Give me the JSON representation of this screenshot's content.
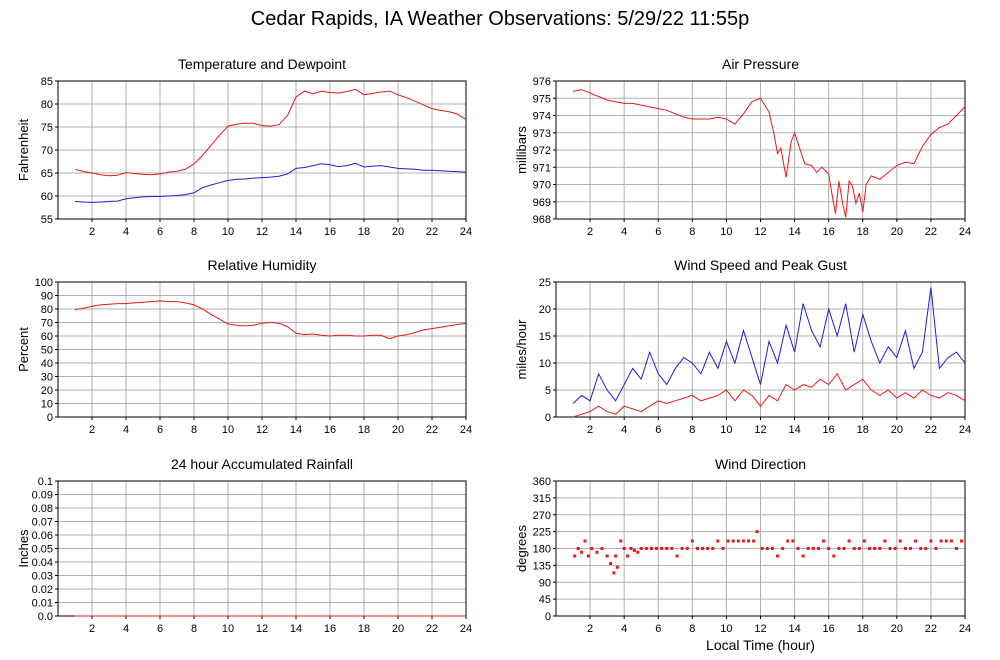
{
  "page_title": "Cedar Rapids, IA Weather Observations: 5/29/22 11:55p",
  "colors": {
    "red": "#e41a1c",
    "blue": "#1f1fd0",
    "grid": "#b0b0b0",
    "frame": "#000000"
  },
  "chart_data": [
    {
      "id": "temperature",
      "type": "line",
      "title": "Temperature and Dewpoint",
      "ylabel": "Fahrenheit",
      "xlabel": "",
      "xlim": [
        0,
        24
      ],
      "ylim": [
        55,
        85
      ],
      "xticks": [
        2,
        4,
        6,
        8,
        10,
        12,
        14,
        16,
        18,
        20,
        22,
        24
      ],
      "yticks": [
        55,
        60,
        65,
        70,
        75,
        80,
        85
      ],
      "grid": true,
      "series": [
        {
          "color": "red",
          "x": [
            1,
            1.5,
            2,
            2.5,
            3,
            3.5,
            4,
            4.5,
            5,
            5.5,
            6,
            6.5,
            7,
            7.5,
            8,
            8.5,
            9,
            9.5,
            10,
            10.5,
            11,
            11.5,
            12,
            12.5,
            13,
            13.5,
            14,
            14.5,
            15,
            15.5,
            16,
            16.5,
            17,
            17.5,
            18,
            18.5,
            19,
            19.5,
            20,
            20.5,
            21,
            21.5,
            22,
            22.5,
            23,
            23.5,
            24
          ],
          "y": [
            65.8,
            65.3,
            65.0,
            64.6,
            64.4,
            64.5,
            65.1,
            64.9,
            64.7,
            64.6,
            64.8,
            65.2,
            65.4,
            65.8,
            67.0,
            68.8,
            71.0,
            73.2,
            75.2,
            75.6,
            75.8,
            75.8,
            75.3,
            75.2,
            75.5,
            77.5,
            81.5,
            82.8,
            82.2,
            82.8,
            82.5,
            82.4,
            82.7,
            83.2,
            82.0,
            82.3,
            82.6,
            82.8,
            82.0,
            81.4,
            80.6,
            79.8,
            79.0,
            78.6,
            78.3,
            77.8,
            76.6
          ]
        },
        {
          "color": "blue",
          "x": [
            1,
            1.5,
            2,
            2.5,
            3,
            3.5,
            4,
            4.5,
            5,
            5.5,
            6,
            6.5,
            7,
            7.5,
            8,
            8.5,
            9,
            9.5,
            10,
            10.5,
            11,
            11.5,
            12,
            12.5,
            13,
            13.5,
            14,
            14.5,
            15,
            15.5,
            16,
            16.5,
            17,
            17.5,
            18,
            18.5,
            19,
            19.5,
            20,
            20.5,
            21,
            21.5,
            22,
            22.5,
            23,
            23.5,
            24
          ],
          "y": [
            58.8,
            58.7,
            58.6,
            58.7,
            58.8,
            58.9,
            59.4,
            59.6,
            59.8,
            59.9,
            59.9,
            60.0,
            60.1,
            60.3,
            60.7,
            61.8,
            62.4,
            62.9,
            63.4,
            63.6,
            63.7,
            63.9,
            64.0,
            64.1,
            64.3,
            64.8,
            66.0,
            66.2,
            66.6,
            67.0,
            66.8,
            66.4,
            66.6,
            67.1,
            66.3,
            66.5,
            66.6,
            66.3,
            66.0,
            65.9,
            65.8,
            65.6,
            65.6,
            65.5,
            65.4,
            65.3,
            65.2
          ]
        }
      ]
    },
    {
      "id": "pressure",
      "type": "line",
      "title": "Air Pressure",
      "ylabel": "millibars",
      "xlabel": "",
      "xlim": [
        0,
        24
      ],
      "ylim": [
        968,
        976
      ],
      "xticks": [
        2,
        4,
        6,
        8,
        10,
        12,
        14,
        16,
        18,
        20,
        22,
        24
      ],
      "yticks": [
        968,
        969,
        970,
        971,
        972,
        973,
        974,
        975,
        976
      ],
      "grid": true,
      "series": [
        {
          "color": "red",
          "x": [
            1,
            1.5,
            2,
            2.5,
            3,
            3.5,
            4,
            4.5,
            5,
            5.5,
            6,
            6.5,
            7,
            7.5,
            8,
            8.5,
            9,
            9.5,
            10,
            10.5,
            11,
            11.5,
            12,
            12.5,
            12.8,
            13,
            13.2,
            13.5,
            13.8,
            14,
            14.3,
            14.6,
            15,
            15.3,
            15.6,
            16,
            16.2,
            16.4,
            16.6,
            16.8,
            17,
            17.2,
            17.4,
            17.6,
            17.8,
            18,
            18.2,
            18.5,
            19,
            19.5,
            20,
            20.5,
            21,
            21.5,
            22,
            22.5,
            23,
            23.5,
            24
          ],
          "y": [
            975.4,
            975.5,
            975.3,
            975.1,
            974.9,
            974.8,
            974.7,
            974.7,
            974.6,
            974.5,
            974.4,
            974.3,
            974.1,
            973.9,
            973.8,
            973.8,
            973.8,
            973.9,
            973.8,
            973.5,
            974.1,
            974.8,
            975.0,
            974.2,
            972.9,
            971.8,
            972.1,
            970.4,
            972.5,
            973.0,
            972.1,
            971.2,
            971.1,
            970.7,
            971.0,
            970.6,
            969.4,
            968.3,
            970.2,
            969.0,
            968.1,
            970.2,
            969.9,
            968.9,
            969.5,
            968.4,
            970.0,
            970.5,
            970.3,
            970.7,
            971.1,
            971.3,
            971.2,
            972.2,
            972.9,
            973.3,
            973.5,
            974.0,
            974.5
          ]
        }
      ]
    },
    {
      "id": "humidity",
      "type": "line",
      "title": "Relative Humidity",
      "ylabel": "Percent",
      "xlabel": "",
      "xlim": [
        0,
        24
      ],
      "ylim": [
        0,
        100
      ],
      "xticks": [
        2,
        4,
        6,
        8,
        10,
        12,
        14,
        16,
        18,
        20,
        22,
        24
      ],
      "yticks": [
        0,
        10,
        20,
        30,
        40,
        50,
        60,
        70,
        80,
        90,
        100
      ],
      "grid": true,
      "series": [
        {
          "color": "red",
          "x": [
            1,
            1.5,
            2,
            2.5,
            3,
            3.5,
            4,
            4.5,
            5,
            5.5,
            6,
            6.5,
            7,
            7.5,
            8,
            8.5,
            9,
            9.5,
            10,
            10.5,
            11,
            11.5,
            12,
            12.5,
            13,
            13.5,
            14,
            14.5,
            15,
            15.5,
            16,
            16.5,
            17,
            17.5,
            18,
            18.5,
            19,
            19.5,
            20,
            20.5,
            21,
            21.5,
            22,
            22.5,
            23,
            23.5,
            24
          ],
          "y": [
            79.5,
            80.5,
            82.0,
            83.0,
            83.5,
            84.0,
            84.0,
            84.5,
            85.0,
            85.5,
            86.0,
            85.5,
            85.5,
            84.5,
            83.0,
            80.0,
            76.0,
            72.5,
            69.0,
            68.0,
            67.5,
            68.0,
            69.5,
            70.0,
            69.5,
            67.0,
            62.0,
            61.0,
            61.5,
            60.5,
            60.0,
            60.5,
            60.5,
            60.0,
            60.0,
            60.5,
            60.5,
            58.0,
            60.0,
            61.0,
            62.5,
            64.5,
            65.5,
            66.5,
            67.5,
            68.5,
            69.5
          ]
        }
      ]
    },
    {
      "id": "wind",
      "type": "line",
      "title": "Wind Speed and Peak Gust",
      "ylabel": "miles/hour",
      "xlabel": "",
      "xlim": [
        0,
        24
      ],
      "ylim": [
        0,
        25
      ],
      "xticks": [
        2,
        4,
        6,
        8,
        10,
        12,
        14,
        16,
        18,
        20,
        22,
        24
      ],
      "yticks": [
        0,
        5,
        10,
        15,
        20,
        25
      ],
      "grid": true,
      "series": [
        {
          "color": "blue",
          "x": [
            1,
            1.5,
            2,
            2.5,
            3,
            3.5,
            4,
            4.5,
            5,
            5.5,
            6,
            6.5,
            7,
            7.5,
            8,
            8.5,
            9,
            9.5,
            10,
            10.5,
            11,
            11.5,
            12,
            12.5,
            13,
            13.5,
            14,
            14.5,
            15,
            15.5,
            16,
            16.5,
            17,
            17.5,
            18,
            18.5,
            19,
            19.5,
            20,
            20.5,
            21,
            21.5,
            22,
            22.5,
            23,
            23.5,
            24
          ],
          "y": [
            2.5,
            4,
            3,
            8,
            5,
            3,
            6,
            9,
            7,
            12,
            8,
            6,
            9,
            11,
            10,
            8,
            12,
            9,
            14,
            10,
            16,
            11,
            6,
            14,
            10,
            17,
            12,
            21,
            16,
            13,
            20,
            15,
            21,
            12,
            19,
            14,
            10,
            13,
            11,
            16,
            9,
            12,
            24,
            9,
            11,
            12,
            10
          ]
        },
        {
          "color": "red",
          "x": [
            1,
            1.5,
            2,
            2.5,
            3,
            3.5,
            4,
            4.5,
            5,
            5.5,
            6,
            6.5,
            7,
            7.5,
            8,
            8.5,
            9,
            9.5,
            10,
            10.5,
            11,
            11.5,
            12,
            12.5,
            13,
            13.5,
            14,
            14.5,
            15,
            15.5,
            16,
            16.5,
            17,
            17.5,
            18,
            18.5,
            19,
            19.5,
            20,
            20.5,
            21,
            21.5,
            22,
            22.5,
            23,
            23.5,
            24
          ],
          "y": [
            0,
            0.5,
            1,
            2,
            1,
            0.5,
            2,
            1.5,
            1,
            2,
            3,
            2.5,
            3,
            3.5,
            4,
            3,
            3.5,
            4,
            5,
            3,
            5,
            4,
            2,
            4,
            3,
            6,
            5,
            6,
            5.5,
            7,
            6,
            8,
            5,
            6,
            7,
            5,
            4,
            5,
            3.5,
            4.5,
            3.5,
            5,
            4,
            3.5,
            4.5,
            4,
            3
          ]
        }
      ]
    },
    {
      "id": "rainfall",
      "type": "line",
      "title": "24 hour Accumulated Rainfall",
      "ylabel": "Inches",
      "xlabel": "",
      "xlim": [
        0,
        24
      ],
      "ylim": [
        0,
        0.1
      ],
      "xticks": [
        2,
        4,
        6,
        8,
        10,
        12,
        14,
        16,
        18,
        20,
        22,
        24
      ],
      "yticks": [
        0.0,
        0.01,
        0.02,
        0.03,
        0.04,
        0.05,
        0.06,
        0.07,
        0.08,
        0.09,
        0.1
      ],
      "ytick_labels": [
        "0.0",
        "0.01",
        "0.02",
        "0.03",
        "0.04",
        "0.05",
        "0.06",
        "0.07",
        "0.08",
        "0.09",
        "0.1"
      ],
      "grid": true,
      "series": [
        {
          "color": "red",
          "x": [
            1,
            24
          ],
          "y": [
            0,
            0
          ]
        }
      ]
    },
    {
      "id": "direction",
      "type": "scatter",
      "title": "Wind Direction",
      "ylabel": "degrees",
      "xlabel": "Local Time (hour)",
      "xlim": [
        0,
        24
      ],
      "ylim": [
        0,
        360
      ],
      "xticks": [
        2,
        4,
        6,
        8,
        10,
        12,
        14,
        16,
        18,
        20,
        22,
        24
      ],
      "yticks": [
        0,
        45,
        90,
        135,
        180,
        225,
        270,
        315,
        360
      ],
      "grid": true,
      "series": [
        {
          "color": "red",
          "x": [
            1.1,
            1.3,
            1.5,
            1.7,
            1.9,
            2.1,
            2.4,
            2.7,
            3.0,
            3.2,
            3.4,
            3.5,
            3.6,
            3.8,
            4.0,
            4.2,
            4.4,
            4.6,
            4.8,
            5.0,
            5.3,
            5.6,
            5.9,
            6.2,
            6.5,
            6.8,
            7.1,
            7.4,
            7.7,
            8.0,
            8.3,
            8.6,
            8.9,
            9.2,
            9.5,
            9.8,
            10.1,
            10.4,
            10.7,
            11.0,
            11.3,
            11.6,
            11.8,
            12.1,
            12.4,
            12.7,
            13.0,
            13.3,
            13.6,
            13.9,
            14.2,
            14.5,
            14.8,
            15.1,
            15.4,
            15.7,
            16.0,
            16.3,
            16.6,
            16.9,
            17.2,
            17.5,
            17.8,
            18.1,
            18.4,
            18.7,
            19.0,
            19.3,
            19.6,
            19.9,
            20.2,
            20.5,
            20.8,
            21.1,
            21.4,
            21.7,
            22.0,
            22.3,
            22.6,
            22.9,
            23.2,
            23.5,
            23.8
          ],
          "y": [
            160,
            180,
            170,
            200,
            160,
            180,
            170,
            180,
            160,
            140,
            115,
            160,
            130,
            200,
            180,
            160,
            180,
            175,
            170,
            180,
            180,
            180,
            180,
            180,
            180,
            180,
            160,
            180,
            180,
            200,
            180,
            180,
            180,
            180,
            200,
            180,
            200,
            200,
            200,
            200,
            200,
            200,
            225,
            180,
            180,
            180,
            160,
            180,
            200,
            200,
            180,
            160,
            180,
            180,
            180,
            200,
            180,
            160,
            180,
            180,
            200,
            180,
            180,
            200,
            180,
            180,
            180,
            200,
            180,
            180,
            200,
            180,
            180,
            200,
            180,
            180,
            200,
            180,
            200,
            200,
            200,
            180,
            200
          ]
        }
      ]
    }
  ]
}
